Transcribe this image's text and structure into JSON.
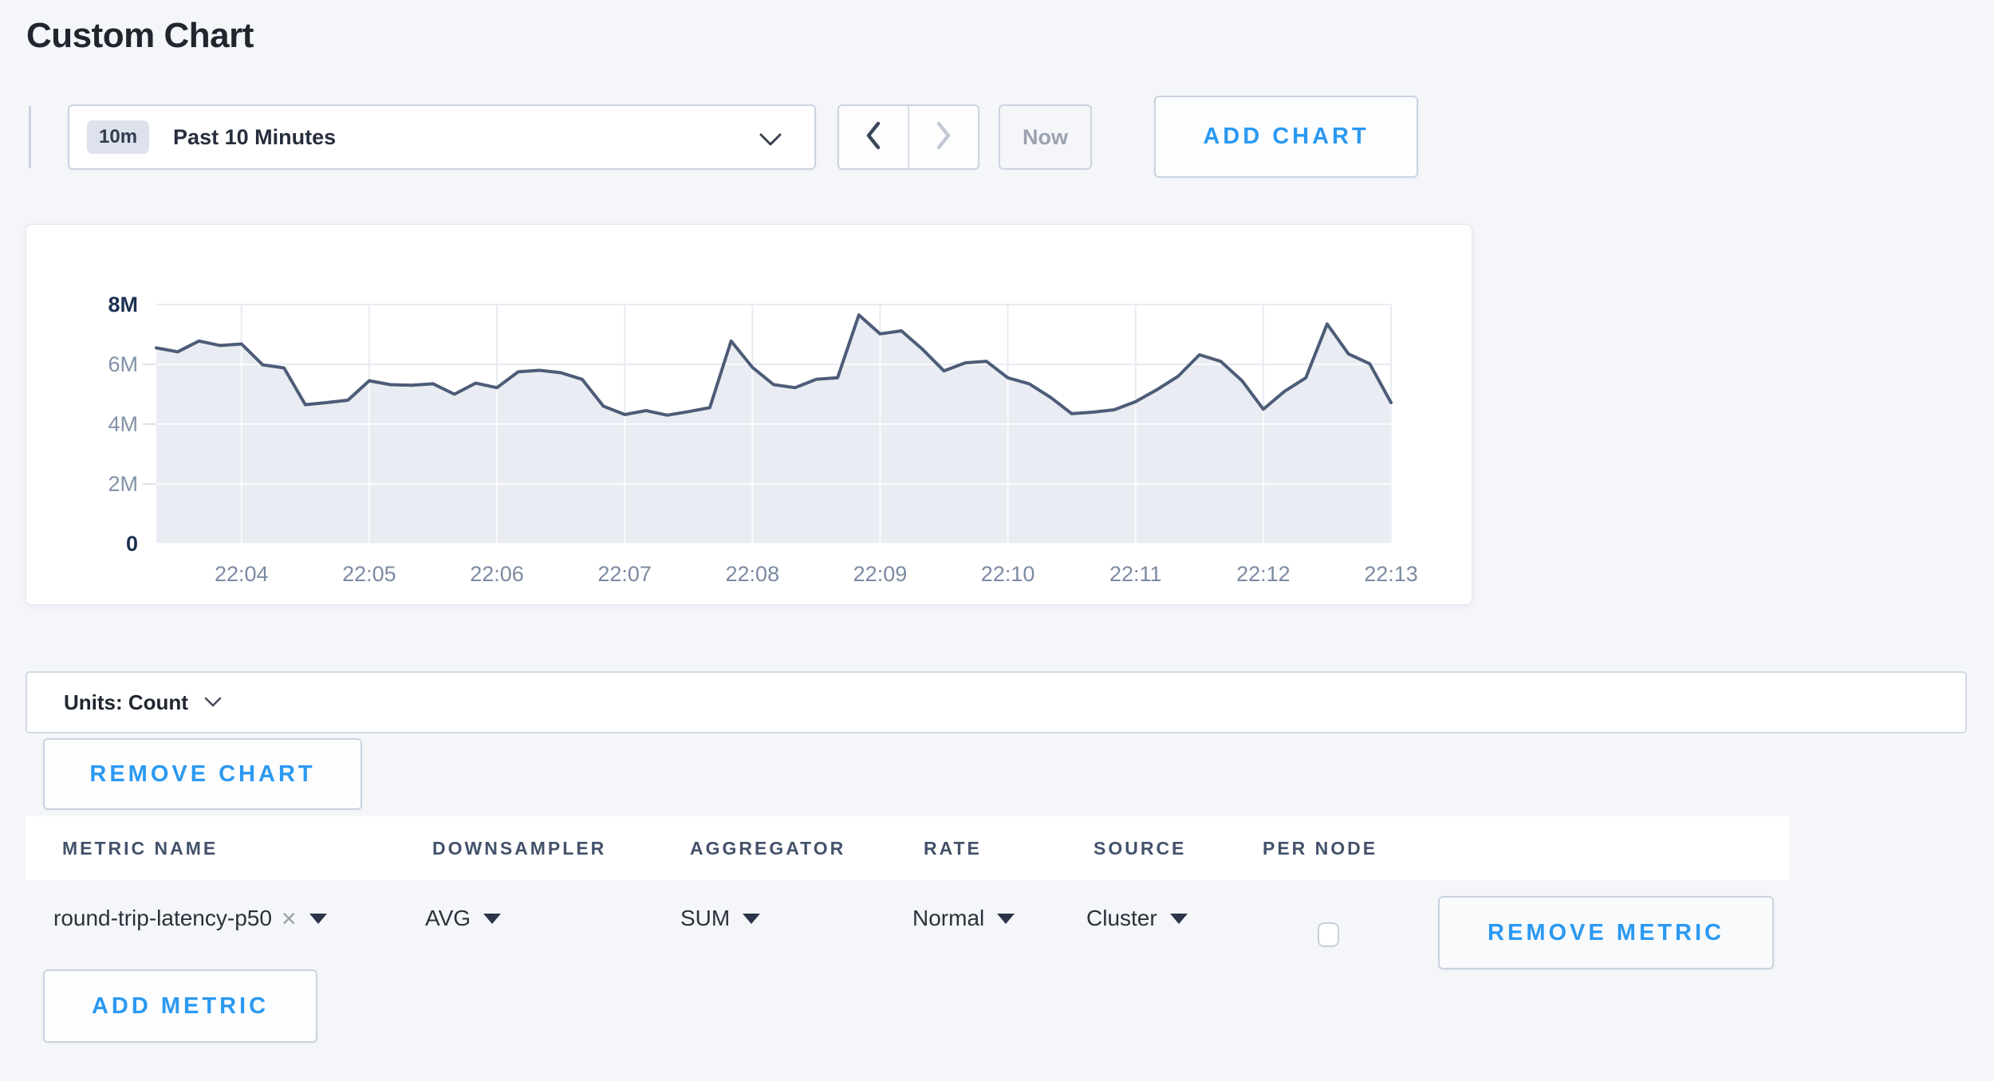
{
  "page": {
    "title": "Custom Chart"
  },
  "colors": {
    "accent_blue": "#2b99f2",
    "line": "#4d5c77",
    "area_fill": "#e9ecf2",
    "grid": "#e8ebf2",
    "axis_label_muted": "#8391a8",
    "axis_label_strong": "#1d3152",
    "x_label": "#7b8aa1",
    "page_background": "#f4f6fa"
  },
  "toolbar": {
    "time_range": {
      "badge": "10m",
      "label": "Past 10 Minutes"
    },
    "now_label": "Now",
    "add_chart_label": "ADD CHART",
    "icons": {
      "time_chevron": "chevron-down",
      "prev": "chevron-left",
      "next": "chevron-right"
    }
  },
  "chart_section": {
    "units_label": "Units: Count",
    "remove_chart_label": "REMOVE CHART"
  },
  "chart_data": {
    "type": "area",
    "title": "",
    "xlabel": "",
    "ylabel": "",
    "unit": "count",
    "grid": true,
    "x_window": [
      "22:03",
      "22:13"
    ],
    "x_ticks": [
      "22:04",
      "22:05",
      "22:06",
      "22:07",
      "22:08",
      "22:09",
      "22:10",
      "22:11",
      "22:12",
      "22:13"
    ],
    "y_ticks": [
      {
        "label": "0",
        "value_millions": 0,
        "emphasis": true
      },
      {
        "label": "2M",
        "value_millions": 2,
        "emphasis": false
      },
      {
        "label": "4M",
        "value_millions": 4,
        "emphasis": false
      },
      {
        "label": "6M",
        "value_millions": 6,
        "emphasis": false
      },
      {
        "label": "8M",
        "value_millions": 8,
        "emphasis": true
      }
    ],
    "ylim_millions": [
      0,
      8
    ],
    "series": [
      {
        "name": "round-trip-latency-p50",
        "start_time": "22:03:20",
        "end_time": "22:13:00",
        "interval_seconds": 10,
        "values_millions": [
          6.55,
          6.42,
          6.78,
          6.63,
          6.68,
          5.98,
          5.88,
          4.65,
          4.72,
          4.8,
          5.45,
          5.32,
          5.3,
          5.35,
          5.0,
          5.37,
          5.22,
          5.75,
          5.8,
          5.72,
          5.5,
          4.6,
          4.32,
          4.45,
          4.3,
          4.42,
          4.55,
          6.78,
          5.9,
          5.32,
          5.22,
          5.5,
          5.55,
          7.65,
          7.02,
          7.12,
          6.5,
          5.78,
          6.05,
          6.1,
          5.55,
          5.35,
          4.9,
          4.35,
          4.4,
          4.48,
          4.75,
          5.15,
          5.6,
          6.32,
          6.1,
          5.45,
          4.5,
          5.1,
          5.55,
          7.35,
          6.35,
          6.02,
          4.72
        ]
      }
    ]
  },
  "metrics_table": {
    "columns": [
      "METRIC NAME",
      "DOWNSAMPLER",
      "AGGREGATOR",
      "RATE",
      "SOURCE",
      "PER NODE"
    ],
    "rows": [
      {
        "metric_name": "round-trip-latency-p50",
        "downsampler": "AVG",
        "aggregator": "SUM",
        "rate": "Normal",
        "source": "Cluster",
        "per_node_checked": false,
        "remove_label": "REMOVE METRIC"
      }
    ],
    "add_metric_label": "ADD METRIC"
  }
}
